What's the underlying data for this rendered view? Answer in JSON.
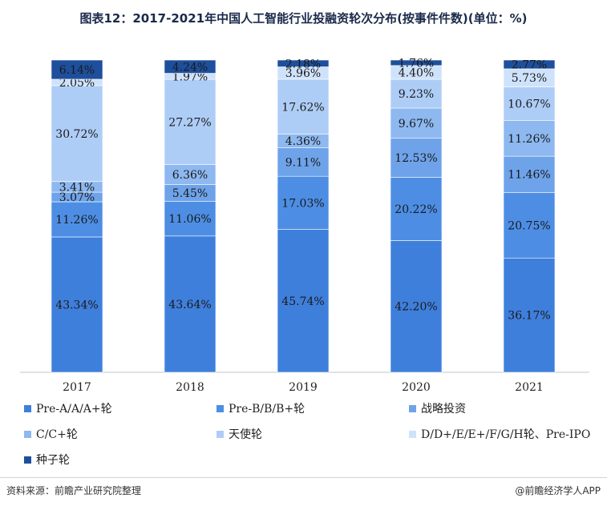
{
  "chart_data": {
    "type": "bar",
    "stacked": true,
    "title": "图表12：2017-2021年中国人工智能行业投融资轮次分布(按事件件数)(单位：%)",
    "categories": [
      "2017",
      "2018",
      "2019",
      "2020",
      "2021"
    ],
    "ylim": [
      0,
      100
    ],
    "series": [
      {
        "name": "Pre-A/A/A+轮",
        "color": "#3f7fdc",
        "values": [
          43.34,
          43.64,
          45.74,
          42.2,
          36.17
        ],
        "labels": [
          "43.34%",
          "43.64%",
          "45.74%",
          "42.20%",
          "36.17%"
        ]
      },
      {
        "name": "Pre-B/B/B+轮",
        "color": "#4d8ee4",
        "values": [
          11.26,
          11.06,
          17.03,
          20.22,
          20.75
        ],
        "labels": [
          "11.26%",
          "11.06%",
          "17.03%",
          "20.22%",
          "20.75%"
        ]
      },
      {
        "name": "战略投资",
        "color": "#6ea3ea",
        "values": [
          3.07,
          5.45,
          9.11,
          12.53,
          11.46
        ],
        "labels": [
          "3.07%",
          "5.45%",
          "9.11%",
          "12.53%",
          "11.46%"
        ]
      },
      {
        "name": "C/C+轮",
        "color": "#8db8f0",
        "values": [
          3.41,
          6.36,
          4.36,
          9.67,
          11.26
        ],
        "labels": [
          "3.41%",
          "6.36%",
          "4.36%",
          "9.67%",
          "11.26%"
        ]
      },
      {
        "name": "天使轮",
        "color": "#aecdf6",
        "values": [
          30.72,
          27.27,
          17.62,
          9.23,
          10.67
        ],
        "labels": [
          "30.72%",
          "27.27%",
          "17.62%",
          "9.23%",
          "10.67%"
        ]
      },
      {
        "name": "D/D+/E/E+/F/G/H轮、Pre-IPO",
        "color": "#cfe2fb",
        "values": [
          2.05,
          1.97,
          3.96,
          4.4,
          5.73
        ],
        "labels": [
          "2.05%",
          "1.97%",
          "3.96%",
          "4.40%",
          "5.73%"
        ]
      },
      {
        "name": "种子轮",
        "color": "#1e4f9c",
        "values": [
          6.14,
          4.24,
          2.18,
          1.76,
          2.77
        ],
        "labels": [
          "6.14%",
          "4.24%",
          "2.18%",
          "1.76%",
          "2.77%"
        ]
      }
    ]
  },
  "footer": {
    "source": "资料来源：前瞻产业研究院整理",
    "brand": "@前瞻经济学人APP"
  }
}
